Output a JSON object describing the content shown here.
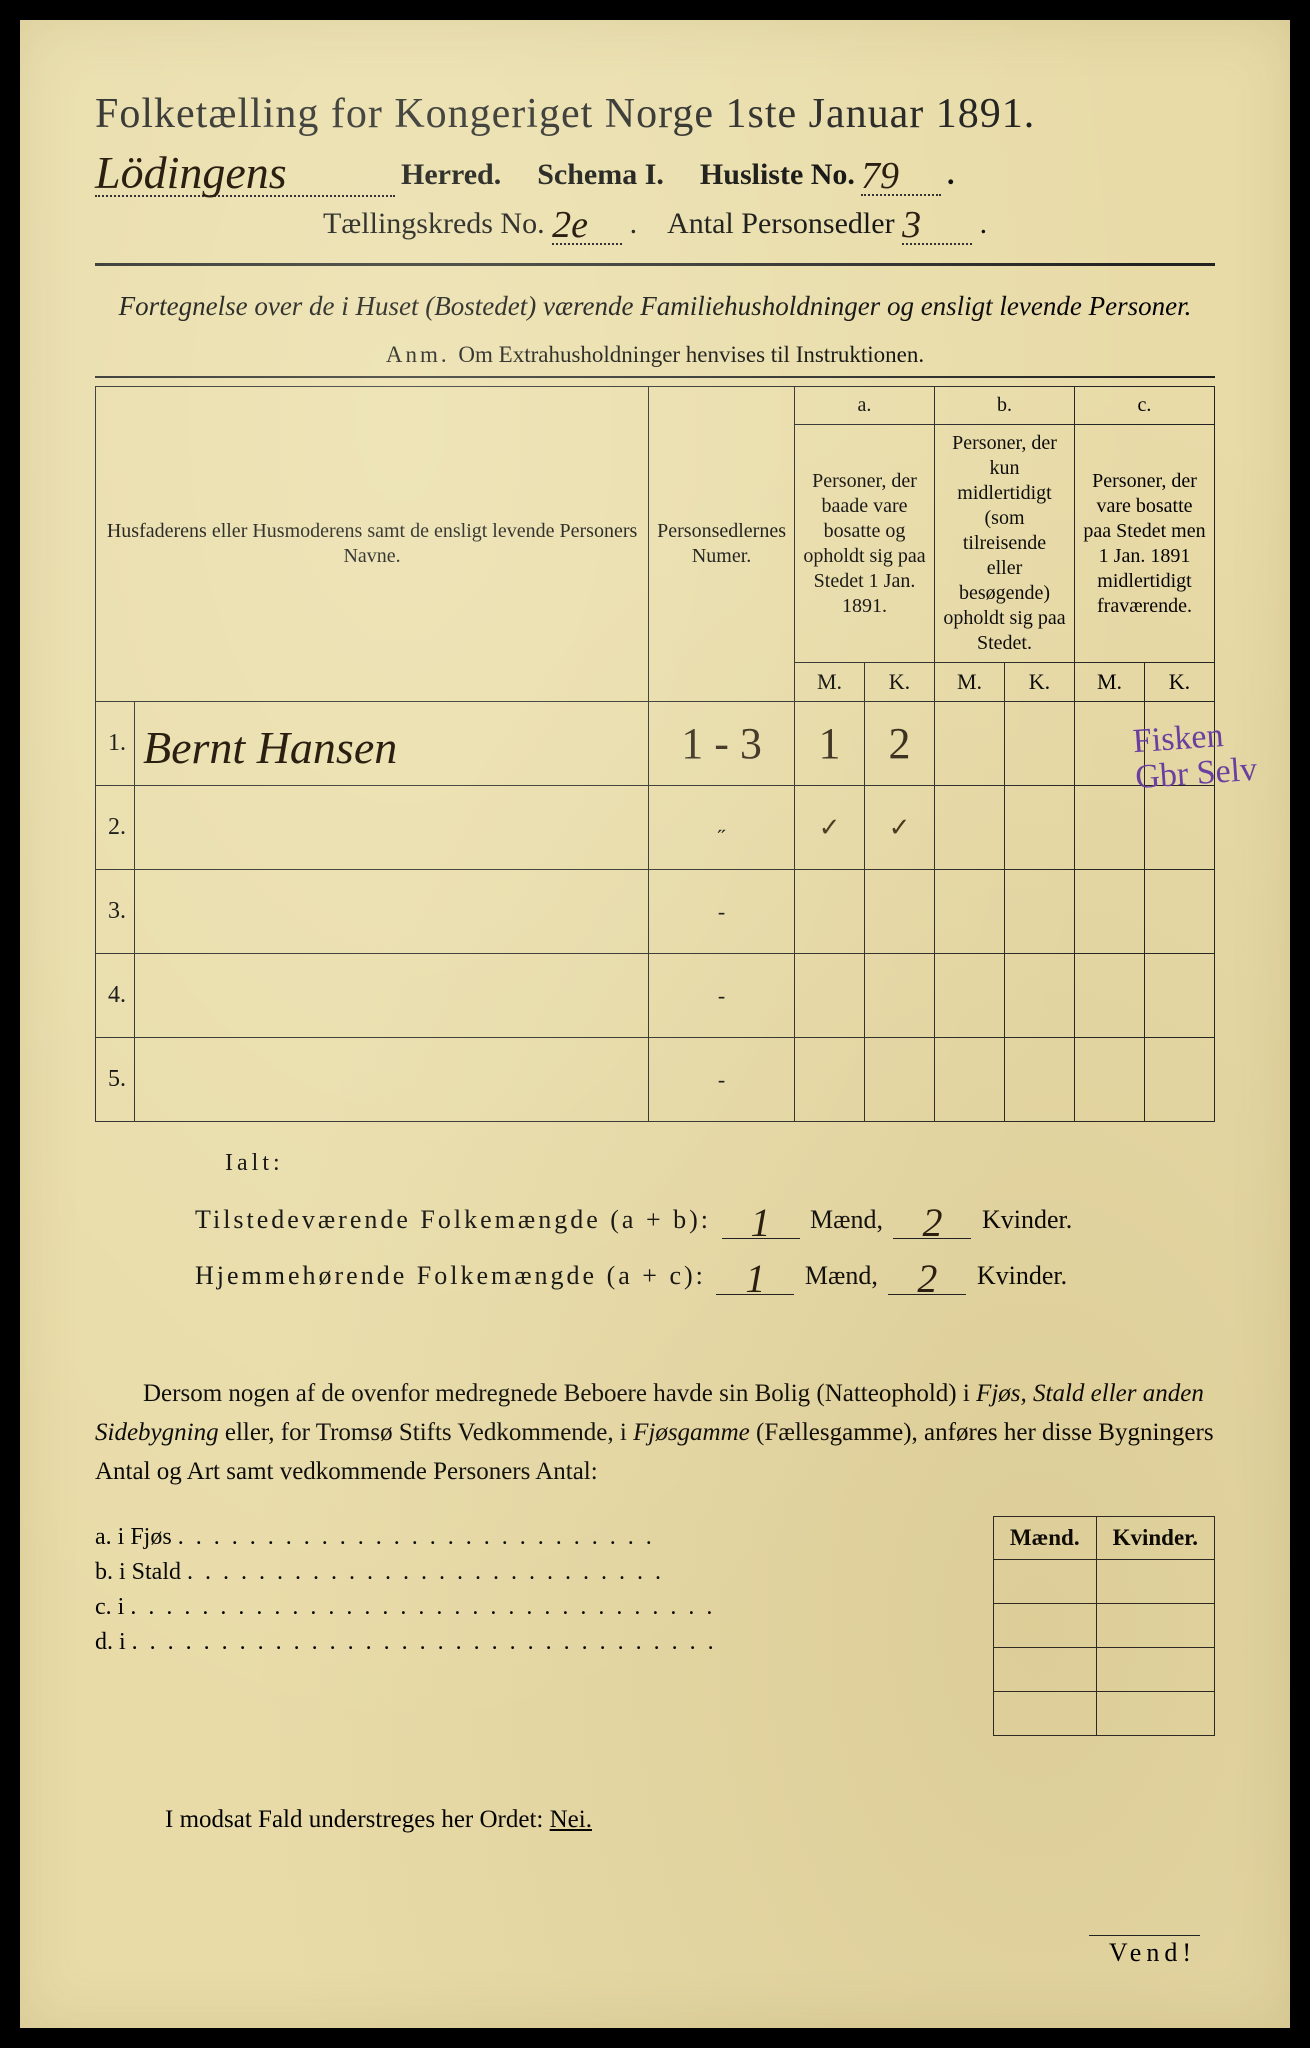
{
  "colors": {
    "paper": "#e8dba8",
    "ink": "#1a1a1a",
    "handwriting": "#2a1f10",
    "annotation": "#6a3fa0",
    "border": "#000000"
  },
  "header": {
    "title": "Folketælling for Kongeriget Norge 1ste Januar 1891.",
    "herred_value": "Lödingens",
    "herred_label": "Herred.",
    "schema_label": "Schema I.",
    "husliste_label": "Husliste No.",
    "husliste_value": "79",
    "kreds_label": "Tællingskreds No.",
    "kreds_value": "2e",
    "antal_label": "Antal Personsedler",
    "antal_value": "3"
  },
  "subtitle": {
    "line": "Fortegnelse over de i Huset (Bostedet) værende Familiehusholdninger og ensligt levende Personer.",
    "anm_label": "Anm.",
    "anm_text": "Om Extrahusholdninger henvises til Instruktionen."
  },
  "table": {
    "col1": "Husfaderens eller Husmoderens samt de ensligt levende Personers Navne.",
    "col2": "Personsedlernes Numer.",
    "a_label": "a.",
    "a_text": "Personer, der baade vare bosatte og opholdt sig paa Stedet 1 Jan. 1891.",
    "b_label": "b.",
    "b_text": "Personer, der kun midlertidigt (som tilreisende eller besøgende) opholdt sig paa Stedet.",
    "c_label": "c.",
    "c_text": "Personer, der vare bosatte paa Stedet men 1 Jan. 1891 midlertidigt fraværende.",
    "m": "M.",
    "k": "K.",
    "rows": [
      {
        "n": "1.",
        "name": "Bernt Hansen",
        "numer": "1 - 3",
        "a_m": "1",
        "a_k": "2",
        "b_m": "",
        "b_k": "",
        "c_m": "",
        "c_k": ""
      },
      {
        "n": "2.",
        "name": "",
        "numer": "˶",
        "a_m": "✓",
        "a_k": "✓",
        "b_m": "",
        "b_k": "",
        "c_m": "",
        "c_k": ""
      },
      {
        "n": "3.",
        "name": "",
        "numer": "-",
        "a_m": "",
        "a_k": "",
        "b_m": "",
        "b_k": "",
        "c_m": "",
        "c_k": ""
      },
      {
        "n": "4.",
        "name": "",
        "numer": "-",
        "a_m": "",
        "a_k": "",
        "b_m": "",
        "b_k": "",
        "c_m": "",
        "c_k": ""
      },
      {
        "n": "5.",
        "name": "",
        "numer": "-",
        "a_m": "",
        "a_k": "",
        "b_m": "",
        "b_k": "",
        "c_m": "",
        "c_k": ""
      }
    ]
  },
  "margin_note": {
    "line1": "Fisken",
    "line2": "Gbr Selv"
  },
  "totals": {
    "ialt": "Ialt:",
    "line1_label": "Tilstedeværende Folkemængde (a + b):",
    "line2_label": "Hjemmehørende Folkemængde (a + c):",
    "maend_label": "Mænd,",
    "kvinder_label": "Kvinder.",
    "line1_m": "1",
    "line1_k": "2",
    "line2_m": "1",
    "line2_k": "2"
  },
  "para": {
    "text1": "Dersom nogen af de ovenfor medregnede Beboere havde sin Bolig (Natteophold) i ",
    "ital1": "Fjøs, Stald eller anden Sidebygning",
    "text2": " eller, for Tromsø Stifts Vedkommende, i ",
    "ital2": "Fjøsgamme",
    "text3": " (Fællesgamme), anføres her disse Bygningers Antal og Art samt vedkommende Personers Antal:"
  },
  "sublist": {
    "a": "a.  i      Fjøs",
    "b": "b.  i      Stald",
    "c": "c.  i",
    "d": "d.  i",
    "maend": "Mænd.",
    "kvinder": "Kvinder."
  },
  "footer": {
    "text": "I modsat Fald understreges her Ordet: ",
    "nei": "Nei.",
    "vend": "Vend!"
  }
}
